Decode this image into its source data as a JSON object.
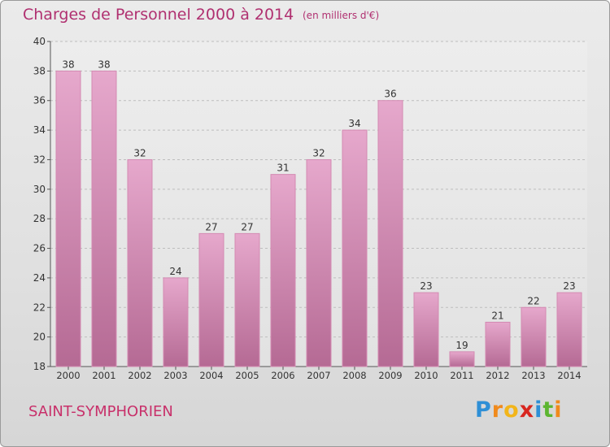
{
  "header": {
    "title": "Charges de Personnel 2000 à 2014",
    "subtitle": "(en milliers d'€)"
  },
  "footer": {
    "commune": "SAINT-SYMPHORIEN",
    "brand": "Proxiti",
    "brand_letters": [
      {
        "ch": "P",
        "color": "#2e8fd6"
      },
      {
        "ch": "r",
        "color": "#f08a1c"
      },
      {
        "ch": "o",
        "color": "#f2b51a"
      },
      {
        "ch": "x",
        "color": "#d8261f"
      },
      {
        "ch": "i",
        "color": "#2e8fd6"
      },
      {
        "ch": "t",
        "color": "#5cb531"
      },
      {
        "ch": "i",
        "color": "#f08a1c"
      }
    ]
  },
  "colors": {
    "bar_top": "#e6a8cc",
    "bar_bottom": "#b56a94",
    "bar_edge": "#d48ab2",
    "text": "#333333",
    "title": "#b03070"
  },
  "chart_data": {
    "type": "bar",
    "categories": [
      "2000",
      "2001",
      "2002",
      "2003",
      "2004",
      "2005",
      "2006",
      "2007",
      "2008",
      "2009",
      "2010",
      "2011",
      "2012",
      "2013",
      "2014"
    ],
    "values": [
      38,
      38,
      32,
      24,
      27,
      27,
      31,
      32,
      34,
      36,
      23,
      19,
      21,
      22,
      23
    ],
    "ylim": [
      18,
      40
    ],
    "yticks": [
      18,
      20,
      22,
      24,
      26,
      28,
      30,
      32,
      34,
      36,
      38,
      40
    ],
    "grid": "horizontal dashed",
    "legend": "none"
  }
}
